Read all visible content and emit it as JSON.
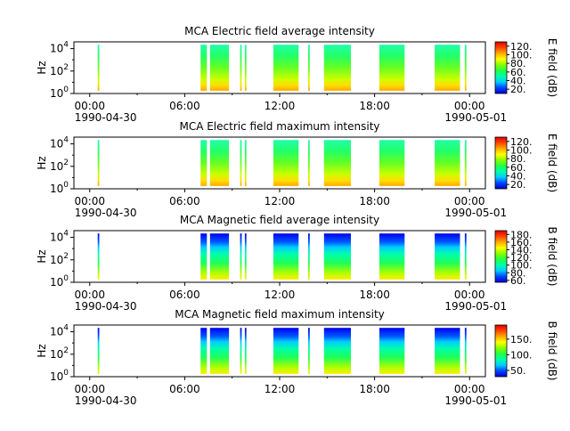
{
  "figure": {
    "date_start": "1990-04-30",
    "date_end": "1990-05-01"
  },
  "chart_data": [
    {
      "type": "heatmap",
      "title": "MCA  Electric field average intensity",
      "ylabel": "Hz",
      "ylim_exponents": [
        0,
        4.6
      ],
      "y_scale": "log",
      "y_ticks": [
        {
          "base": "10",
          "exp": "0",
          "value": 1
        },
        {
          "base": "10",
          "exp": "2",
          "value": 100
        },
        {
          "base": "10",
          "exp": "4",
          "value": 10000
        }
      ],
      "x_ticks": [
        "00:00",
        "06:00",
        "12:00",
        "18:00",
        "00:00"
      ],
      "x_tick_hours": [
        0,
        6,
        12,
        18,
        24
      ],
      "xlim_hours": [
        -1,
        25
      ],
      "x_date_labels": [
        "1990-04-30",
        "1990-05-01"
      ],
      "colorbar": {
        "label": "E field (dB)",
        "ticks": [
          "20.",
          "40.",
          "60.",
          "80.",
          "100.",
          "120."
        ],
        "tick_values": [
          20,
          40,
          60,
          80,
          100,
          120
        ],
        "range": [
          10,
          130
        ],
        "reversed_low_high": false
      },
      "field": "electric",
      "palette": "electric",
      "data_intervals_hours": [
        [
          0.5,
          0.6
        ],
        [
          7.0,
          7.4
        ],
        [
          7.6,
          8.8
        ],
        [
          9.5,
          9.6
        ],
        [
          9.8,
          9.9
        ],
        [
          11.6,
          13.2
        ],
        [
          13.8,
          13.9
        ],
        [
          14.8,
          16.5
        ],
        [
          18.3,
          19.9
        ],
        [
          21.8,
          23.4
        ],
        [
          23.7,
          23.8
        ]
      ]
    },
    {
      "type": "heatmap",
      "title": "MCA  Electric field maximum intensity",
      "ylabel": "Hz",
      "ylim_exponents": [
        0,
        4.6
      ],
      "y_scale": "log",
      "y_ticks": [
        {
          "base": "10",
          "exp": "0",
          "value": 1
        },
        {
          "base": "10",
          "exp": "2",
          "value": 100
        },
        {
          "base": "10",
          "exp": "4",
          "value": 10000
        }
      ],
      "x_ticks": [
        "00:00",
        "06:00",
        "12:00",
        "18:00",
        "00:00"
      ],
      "x_tick_hours": [
        0,
        6,
        12,
        18,
        24
      ],
      "xlim_hours": [
        -1,
        25
      ],
      "x_date_labels": [
        "1990-04-30",
        "1990-05-01"
      ],
      "colorbar": {
        "label": "E field (dB)",
        "ticks": [
          "20.",
          "40.",
          "60.",
          "80.",
          "100.",
          "120."
        ],
        "tick_values": [
          20,
          40,
          60,
          80,
          100,
          120
        ],
        "range": [
          10,
          130
        ]
      },
      "field": "electric",
      "palette": "electric",
      "data_intervals_hours": [
        [
          0.5,
          0.6
        ],
        [
          7.0,
          7.4
        ],
        [
          7.6,
          8.8
        ],
        [
          9.5,
          9.6
        ],
        [
          9.8,
          9.9
        ],
        [
          11.6,
          13.2
        ],
        [
          13.8,
          13.9
        ],
        [
          14.8,
          16.5
        ],
        [
          18.3,
          19.9
        ],
        [
          21.8,
          23.4
        ],
        [
          23.7,
          23.8
        ]
      ]
    },
    {
      "type": "heatmap",
      "title": "MCA  Magnetic field average intensity",
      "ylabel": "Hz",
      "ylim_exponents": [
        0,
        4.6
      ],
      "y_scale": "log",
      "y_ticks": [
        {
          "base": "10",
          "exp": "0",
          "value": 1
        },
        {
          "base": "10",
          "exp": "2",
          "value": 100
        },
        {
          "base": "10",
          "exp": "4",
          "value": 10000
        }
      ],
      "x_ticks": [
        "00:00",
        "06:00",
        "12:00",
        "18:00",
        "00:00"
      ],
      "x_tick_hours": [
        0,
        6,
        12,
        18,
        24
      ],
      "xlim_hours": [
        -1,
        25
      ],
      "x_date_labels": [
        "1990-04-30",
        "1990-05-01"
      ],
      "colorbar": {
        "label": "B field (dB)",
        "ticks": [
          "60.",
          "80.",
          "100.",
          "120.",
          "140.",
          "160.",
          "180."
        ],
        "tick_values": [
          60,
          80,
          100,
          120,
          140,
          160,
          180
        ],
        "range": [
          55,
          190
        ]
      },
      "field": "magnetic",
      "palette": "magnetic",
      "data_intervals_hours": [
        [
          0.5,
          0.6
        ],
        [
          7.0,
          7.4
        ],
        [
          7.6,
          8.8
        ],
        [
          9.5,
          9.6
        ],
        [
          9.8,
          9.9
        ],
        [
          11.6,
          13.2
        ],
        [
          13.8,
          13.9
        ],
        [
          14.8,
          16.5
        ],
        [
          18.3,
          19.9
        ],
        [
          21.8,
          23.4
        ],
        [
          23.7,
          23.8
        ]
      ]
    },
    {
      "type": "heatmap",
      "title": "MCA  Magnetic field maximum intensity",
      "ylabel": "Hz",
      "ylim_exponents": [
        0,
        4.6
      ],
      "y_scale": "log",
      "y_ticks": [
        {
          "base": "10",
          "exp": "0",
          "value": 1
        },
        {
          "base": "10",
          "exp": "2",
          "value": 100
        },
        {
          "base": "10",
          "exp": "4",
          "value": 10000
        }
      ],
      "x_ticks": [
        "00:00",
        "06:00",
        "12:00",
        "18:00",
        "00:00"
      ],
      "x_tick_hours": [
        0,
        6,
        12,
        18,
        24
      ],
      "xlim_hours": [
        -1,
        25
      ],
      "x_date_labels": [
        "1990-04-30",
        "1990-05-01"
      ],
      "colorbar": {
        "label": "B field (dB)",
        "ticks": [
          "50.",
          "100.",
          "150."
        ],
        "tick_values": [
          50,
          100,
          150
        ],
        "range": [
          30,
          195
        ]
      },
      "field": "magnetic",
      "palette": "magnetic",
      "data_intervals_hours": [
        [
          0.5,
          0.6
        ],
        [
          7.0,
          7.4
        ],
        [
          7.6,
          8.8
        ],
        [
          9.5,
          9.6
        ],
        [
          9.8,
          9.9
        ],
        [
          11.6,
          13.2
        ],
        [
          13.8,
          13.9
        ],
        [
          14.8,
          16.5
        ],
        [
          18.3,
          19.9
        ],
        [
          21.8,
          23.4
        ],
        [
          23.7,
          23.8
        ]
      ]
    }
  ],
  "colors": {
    "rainbow": [
      "#0000cc",
      "#0044ff",
      "#00ccff",
      "#00ffaa",
      "#22ff44",
      "#88ff00",
      "#ffff00",
      "#ffaa00",
      "#ff4400",
      "#dd0000"
    ],
    "frame": "#000000",
    "background": "#ffffff"
  }
}
